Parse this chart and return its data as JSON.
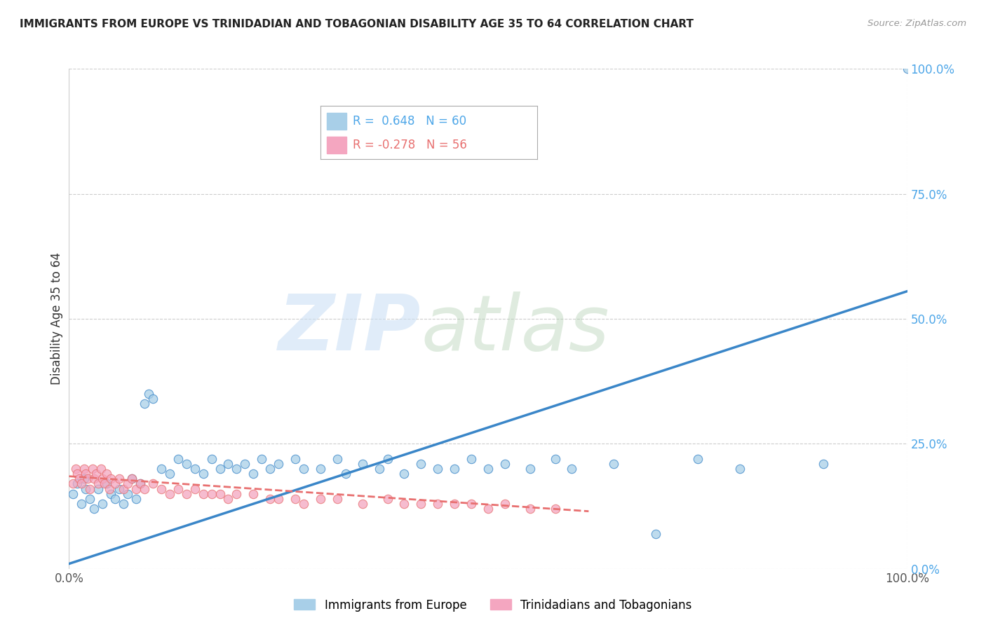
{
  "title": "IMMIGRANTS FROM EUROPE VS TRINIDADIAN AND TOBAGONIAN DISABILITY AGE 35 TO 64 CORRELATION CHART",
  "source": "Source: ZipAtlas.com",
  "ylabel": "Disability Age 35 to 64",
  "xlim": [
    0,
    1.0
  ],
  "ylim": [
    0,
    1.0
  ],
  "ytick_values": [
    0.0,
    0.25,
    0.5,
    0.75,
    1.0
  ],
  "ytick_labels": [
    "0.0%",
    "25.0%",
    "50.0%",
    "75.0%",
    "100.0%"
  ],
  "xtick_values": [
    0.0,
    1.0
  ],
  "xtick_labels": [
    "0.0%",
    "100.0%"
  ],
  "blue_R": 0.648,
  "blue_N": 60,
  "pink_R": -0.278,
  "pink_N": 56,
  "blue_color": "#a8cfe8",
  "pink_color": "#f4a6c0",
  "blue_line_color": "#3a86c8",
  "pink_line_color": "#e87070",
  "legend1": "Immigrants from Europe",
  "legend2": "Trinidadians and Tobagonians",
  "blue_scatter_x": [
    0.005,
    0.01,
    0.015,
    0.018,
    0.02,
    0.025,
    0.03,
    0.035,
    0.04,
    0.045,
    0.05,
    0.055,
    0.06,
    0.065,
    0.07,
    0.075,
    0.08,
    0.085,
    0.09,
    0.095,
    0.1,
    0.11,
    0.12,
    0.13,
    0.14,
    0.15,
    0.16,
    0.17,
    0.18,
    0.19,
    0.2,
    0.21,
    0.22,
    0.23,
    0.24,
    0.25,
    0.27,
    0.28,
    0.3,
    0.32,
    0.33,
    0.35,
    0.37,
    0.38,
    0.4,
    0.42,
    0.44,
    0.46,
    0.48,
    0.5,
    0.52,
    0.55,
    0.58,
    0.6,
    0.65,
    0.7,
    0.75,
    0.8,
    0.9,
    1.0
  ],
  "blue_scatter_y": [
    0.15,
    0.17,
    0.13,
    0.18,
    0.16,
    0.14,
    0.12,
    0.16,
    0.13,
    0.17,
    0.15,
    0.14,
    0.16,
    0.13,
    0.15,
    0.18,
    0.14,
    0.17,
    0.33,
    0.35,
    0.34,
    0.2,
    0.19,
    0.22,
    0.21,
    0.2,
    0.19,
    0.22,
    0.2,
    0.21,
    0.2,
    0.21,
    0.19,
    0.22,
    0.2,
    0.21,
    0.22,
    0.2,
    0.2,
    0.22,
    0.19,
    0.21,
    0.2,
    0.22,
    0.19,
    0.21,
    0.2,
    0.2,
    0.22,
    0.2,
    0.21,
    0.2,
    0.22,
    0.2,
    0.21,
    0.07,
    0.22,
    0.2,
    0.21,
    1.0
  ],
  "pink_scatter_x": [
    0.005,
    0.008,
    0.01,
    0.012,
    0.015,
    0.018,
    0.02,
    0.022,
    0.025,
    0.028,
    0.03,
    0.032,
    0.035,
    0.038,
    0.04,
    0.042,
    0.045,
    0.048,
    0.05,
    0.055,
    0.06,
    0.065,
    0.07,
    0.075,
    0.08,
    0.085,
    0.09,
    0.1,
    0.11,
    0.12,
    0.13,
    0.14,
    0.15,
    0.16,
    0.17,
    0.18,
    0.19,
    0.2,
    0.22,
    0.24,
    0.25,
    0.27,
    0.28,
    0.3,
    0.32,
    0.35,
    0.38,
    0.4,
    0.42,
    0.44,
    0.46,
    0.48,
    0.5,
    0.52,
    0.55,
    0.58
  ],
  "pink_scatter_y": [
    0.17,
    0.2,
    0.19,
    0.18,
    0.17,
    0.2,
    0.19,
    0.18,
    0.16,
    0.2,
    0.18,
    0.19,
    0.17,
    0.2,
    0.18,
    0.17,
    0.19,
    0.16,
    0.18,
    0.17,
    0.18,
    0.16,
    0.17,
    0.18,
    0.16,
    0.17,
    0.16,
    0.17,
    0.16,
    0.15,
    0.16,
    0.15,
    0.16,
    0.15,
    0.15,
    0.15,
    0.14,
    0.15,
    0.15,
    0.14,
    0.14,
    0.14,
    0.13,
    0.14,
    0.14,
    0.13,
    0.14,
    0.13,
    0.13,
    0.13,
    0.13,
    0.13,
    0.12,
    0.13,
    0.12,
    0.12
  ],
  "blue_line_x0": 0.0,
  "blue_line_y0": 0.01,
  "blue_line_x1": 1.0,
  "blue_line_y1": 0.555,
  "pink_line_x0": 0.0,
  "pink_line_y0": 0.185,
  "pink_line_x1": 0.62,
  "pink_line_y1": 0.115
}
